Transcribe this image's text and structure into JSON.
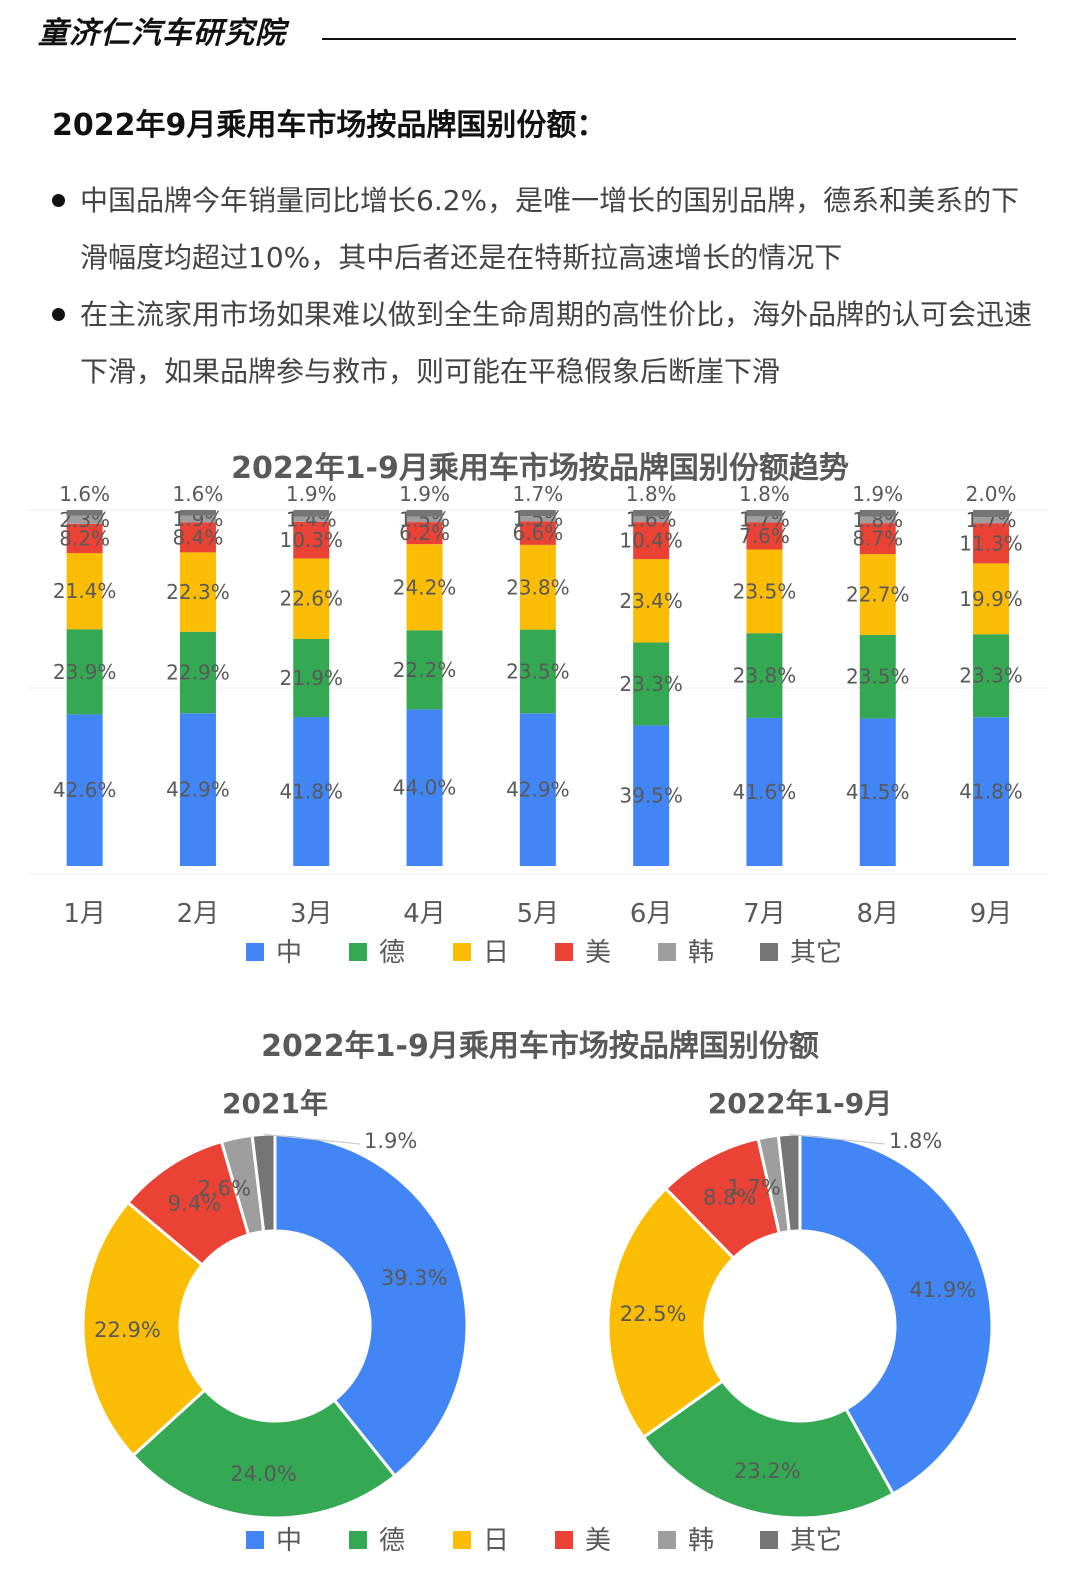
{
  "header": {
    "brand": "童济仁汽车研究院",
    "title": "2022年9月乘用车市场按品牌国别份额："
  },
  "bullets": [
    "中国品牌今年销量同比增长6.2%，是唯一增长的国别品牌，德系和美系的下滑幅度均超过10%，其中后者还是在特斯拉高速增长的情况下",
    "在主流家用市场如果难以做到全生命周期的高性价比，海外品牌的认可会迅速下滑，如果品牌参与救市，则可能在平稳假象后断崖下滑"
  ],
  "colors": {
    "中": "#4285F4",
    "德": "#34A853",
    "日": "#FBBC04",
    "美": "#EA4335",
    "韩": "#9E9E9E",
    "其它": "#757575"
  },
  "chart_data": [
    {
      "type": "bar",
      "stacked": true,
      "title": "2022年1-9月乘用车市场按品牌国别份额趋势",
      "categories": [
        "1月",
        "2月",
        "3月",
        "4月",
        "5月",
        "6月",
        "7月",
        "8月",
        "9月"
      ],
      "series": [
        {
          "name": "中",
          "values": [
            42.6,
            42.9,
            41.8,
            44.0,
            42.9,
            39.5,
            41.6,
            41.5,
            41.8
          ],
          "labels": [
            "42.6%",
            "42.9%",
            "41.8%",
            "44.0%",
            "42.9%",
            "39.5%",
            "41.6%",
            "41.5%",
            "41.8%"
          ]
        },
        {
          "name": "德",
          "values": [
            23.9,
            22.9,
            21.9,
            22.2,
            23.5,
            23.3,
            23.8,
            23.5,
            23.3
          ],
          "labels": [
            "23.9%",
            "22.9%",
            "21.9%",
            "22.2%",
            "23.5%",
            "23.3%",
            "23.8%",
            "23.5%",
            "23.3%"
          ]
        },
        {
          "name": "日",
          "values": [
            21.4,
            22.3,
            22.6,
            24.2,
            23.8,
            23.4,
            23.5,
            22.7,
            19.9
          ],
          "labels": [
            "21.4%",
            "22.3%",
            "22.6%",
            "24.2%",
            "23.8%",
            "23.4%",
            "23.5%",
            "22.7%",
            "19.9%"
          ]
        },
        {
          "name": "美",
          "values": [
            8.2,
            8.4,
            10.3,
            6.2,
            6.6,
            10.4,
            7.6,
            8.7,
            11.3
          ],
          "labels": [
            "8.2%",
            "8.4%",
            "10.3%",
            "6.2%",
            "6.6%",
            "10.4%",
            "7.6%",
            "8.7%",
            "11.3%"
          ]
        },
        {
          "name": "韩",
          "values": [
            2.3,
            1.9,
            1.4,
            1.5,
            1.5,
            1.6,
            1.7,
            1.8,
            1.7
          ],
          "labels": [
            "2.3%",
            "1.9%",
            "1.4%",
            "1.5%",
            "1.5%",
            "1.6%",
            "1.7%",
            "1.8%",
            "1.7%"
          ]
        },
        {
          "name": "其它",
          "values": [
            1.6,
            1.6,
            1.9,
            1.9,
            1.7,
            1.8,
            1.8,
            1.9,
            2.0
          ],
          "labels": [
            "1.6%",
            "1.6%",
            "1.9%",
            "1.9%",
            "1.7%",
            "1.8%",
            "1.8%",
            "1.9%",
            "2.0%"
          ]
        }
      ],
      "legend": "bottom"
    },
    {
      "type": "pie",
      "donut": true,
      "title": "2022年1-9月乘用车市场按品牌国别份额",
      "subtitle": "2021年",
      "slices": [
        {
          "name": "中",
          "value": 39.3,
          "label": "39.3%"
        },
        {
          "name": "德",
          "value": 24.0,
          "label": "24.0%"
        },
        {
          "name": "日",
          "value": 22.9,
          "label": "22.9%"
        },
        {
          "name": "美",
          "value": 9.4,
          "label": "9.4%"
        },
        {
          "name": "韩",
          "value": 2.6,
          "label": "2.6%"
        },
        {
          "name": "其它",
          "value": 1.9,
          "label": "1.9%"
        }
      ]
    },
    {
      "type": "pie",
      "donut": true,
      "title": "2022年1-9月乘用车市场按品牌国别份额",
      "subtitle": "2022年1-9月",
      "slices": [
        {
          "name": "中",
          "value": 41.9,
          "label": "41.9%"
        },
        {
          "name": "德",
          "value": 23.2,
          "label": "23.2%"
        },
        {
          "name": "日",
          "value": 22.5,
          "label": "22.5%"
        },
        {
          "name": "美",
          "value": 8.8,
          "label": "8.8%"
        },
        {
          "name": "韩",
          "value": 1.7,
          "label": "1.7%"
        },
        {
          "name": "其它",
          "value": 1.8,
          "label": "1.8%"
        }
      ],
      "legend": "bottom"
    }
  ]
}
